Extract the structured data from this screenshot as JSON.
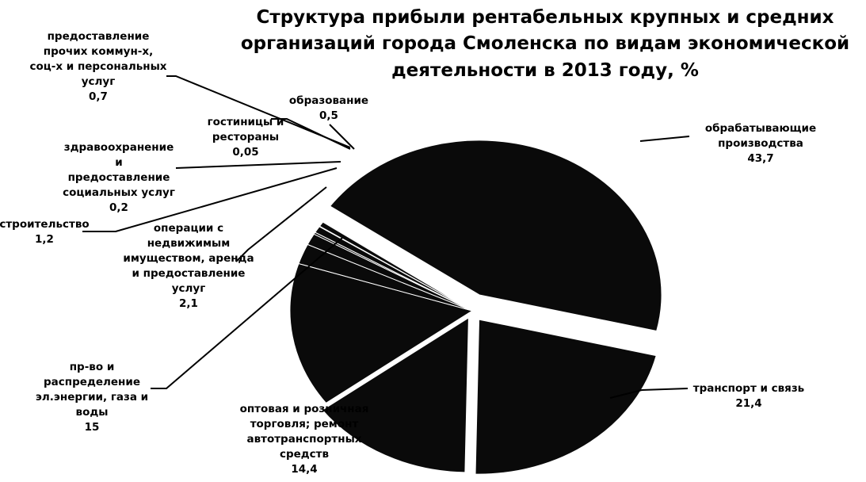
{
  "chart_data": {
    "type": "pie",
    "title": "Структура прибыли рентабельных крупных и средних организаций города Смоленска по видам экономической деятельности в 2013 году, %",
    "title_lines": [
      "Структура прибыли рентабельных крупных и средних",
      "организаций города Смоленска по видам экономической",
      "деятельности в 2013 году, %"
    ],
    "slice_color": "#0a0a0a",
    "slices": [
      {
        "key": "manufacturing",
        "label_lines": [
          "обрабатывающие",
          "производства"
        ],
        "value": 43.7,
        "value_text": "43,7"
      },
      {
        "key": "transport",
        "label_lines": [
          "транспорт и связь"
        ],
        "value": 21.4,
        "value_text": "21,4"
      },
      {
        "key": "trade",
        "label_lines": [
          "оптовая и розничная",
          "торговля; ремонт",
          "автотранспортных",
          "средств"
        ],
        "value": 14.4,
        "value_text": "14,4"
      },
      {
        "key": "energy",
        "label_lines": [
          "пр-во и",
          "распределение",
          "эл.энергии, газа и",
          "воды"
        ],
        "value": 15,
        "value_text": "15"
      },
      {
        "key": "realestate",
        "label_lines": [
          "операции с",
          "недвижимым",
          "имуществом, аренда",
          "и предоставление",
          "услуг"
        ],
        "value": 2.1,
        "value_text": "2,1"
      },
      {
        "key": "construction",
        "label_lines": [
          "строительство"
        ],
        "value": 1.2,
        "value_text": "1,2"
      },
      {
        "key": "health",
        "label_lines": [
          "здравоохранение",
          "и",
          "предоставление",
          "социальных услуг"
        ],
        "value": 0.2,
        "value_text": "0,2"
      },
      {
        "key": "other_services",
        "label_lines": [
          "предоставление",
          "прочих коммун-х,",
          "соц-х и персональных",
          "услуг"
        ],
        "value": 0.7,
        "value_text": "0,7"
      },
      {
        "key": "hotels",
        "label_lines": [
          "гостиницы и",
          "рестораны"
        ],
        "value": 0.05,
        "value_text": "0,05"
      },
      {
        "key": "education",
        "label_lines": [
          "образование"
        ],
        "value": 0.5,
        "value_text": "0,5"
      }
    ]
  }
}
